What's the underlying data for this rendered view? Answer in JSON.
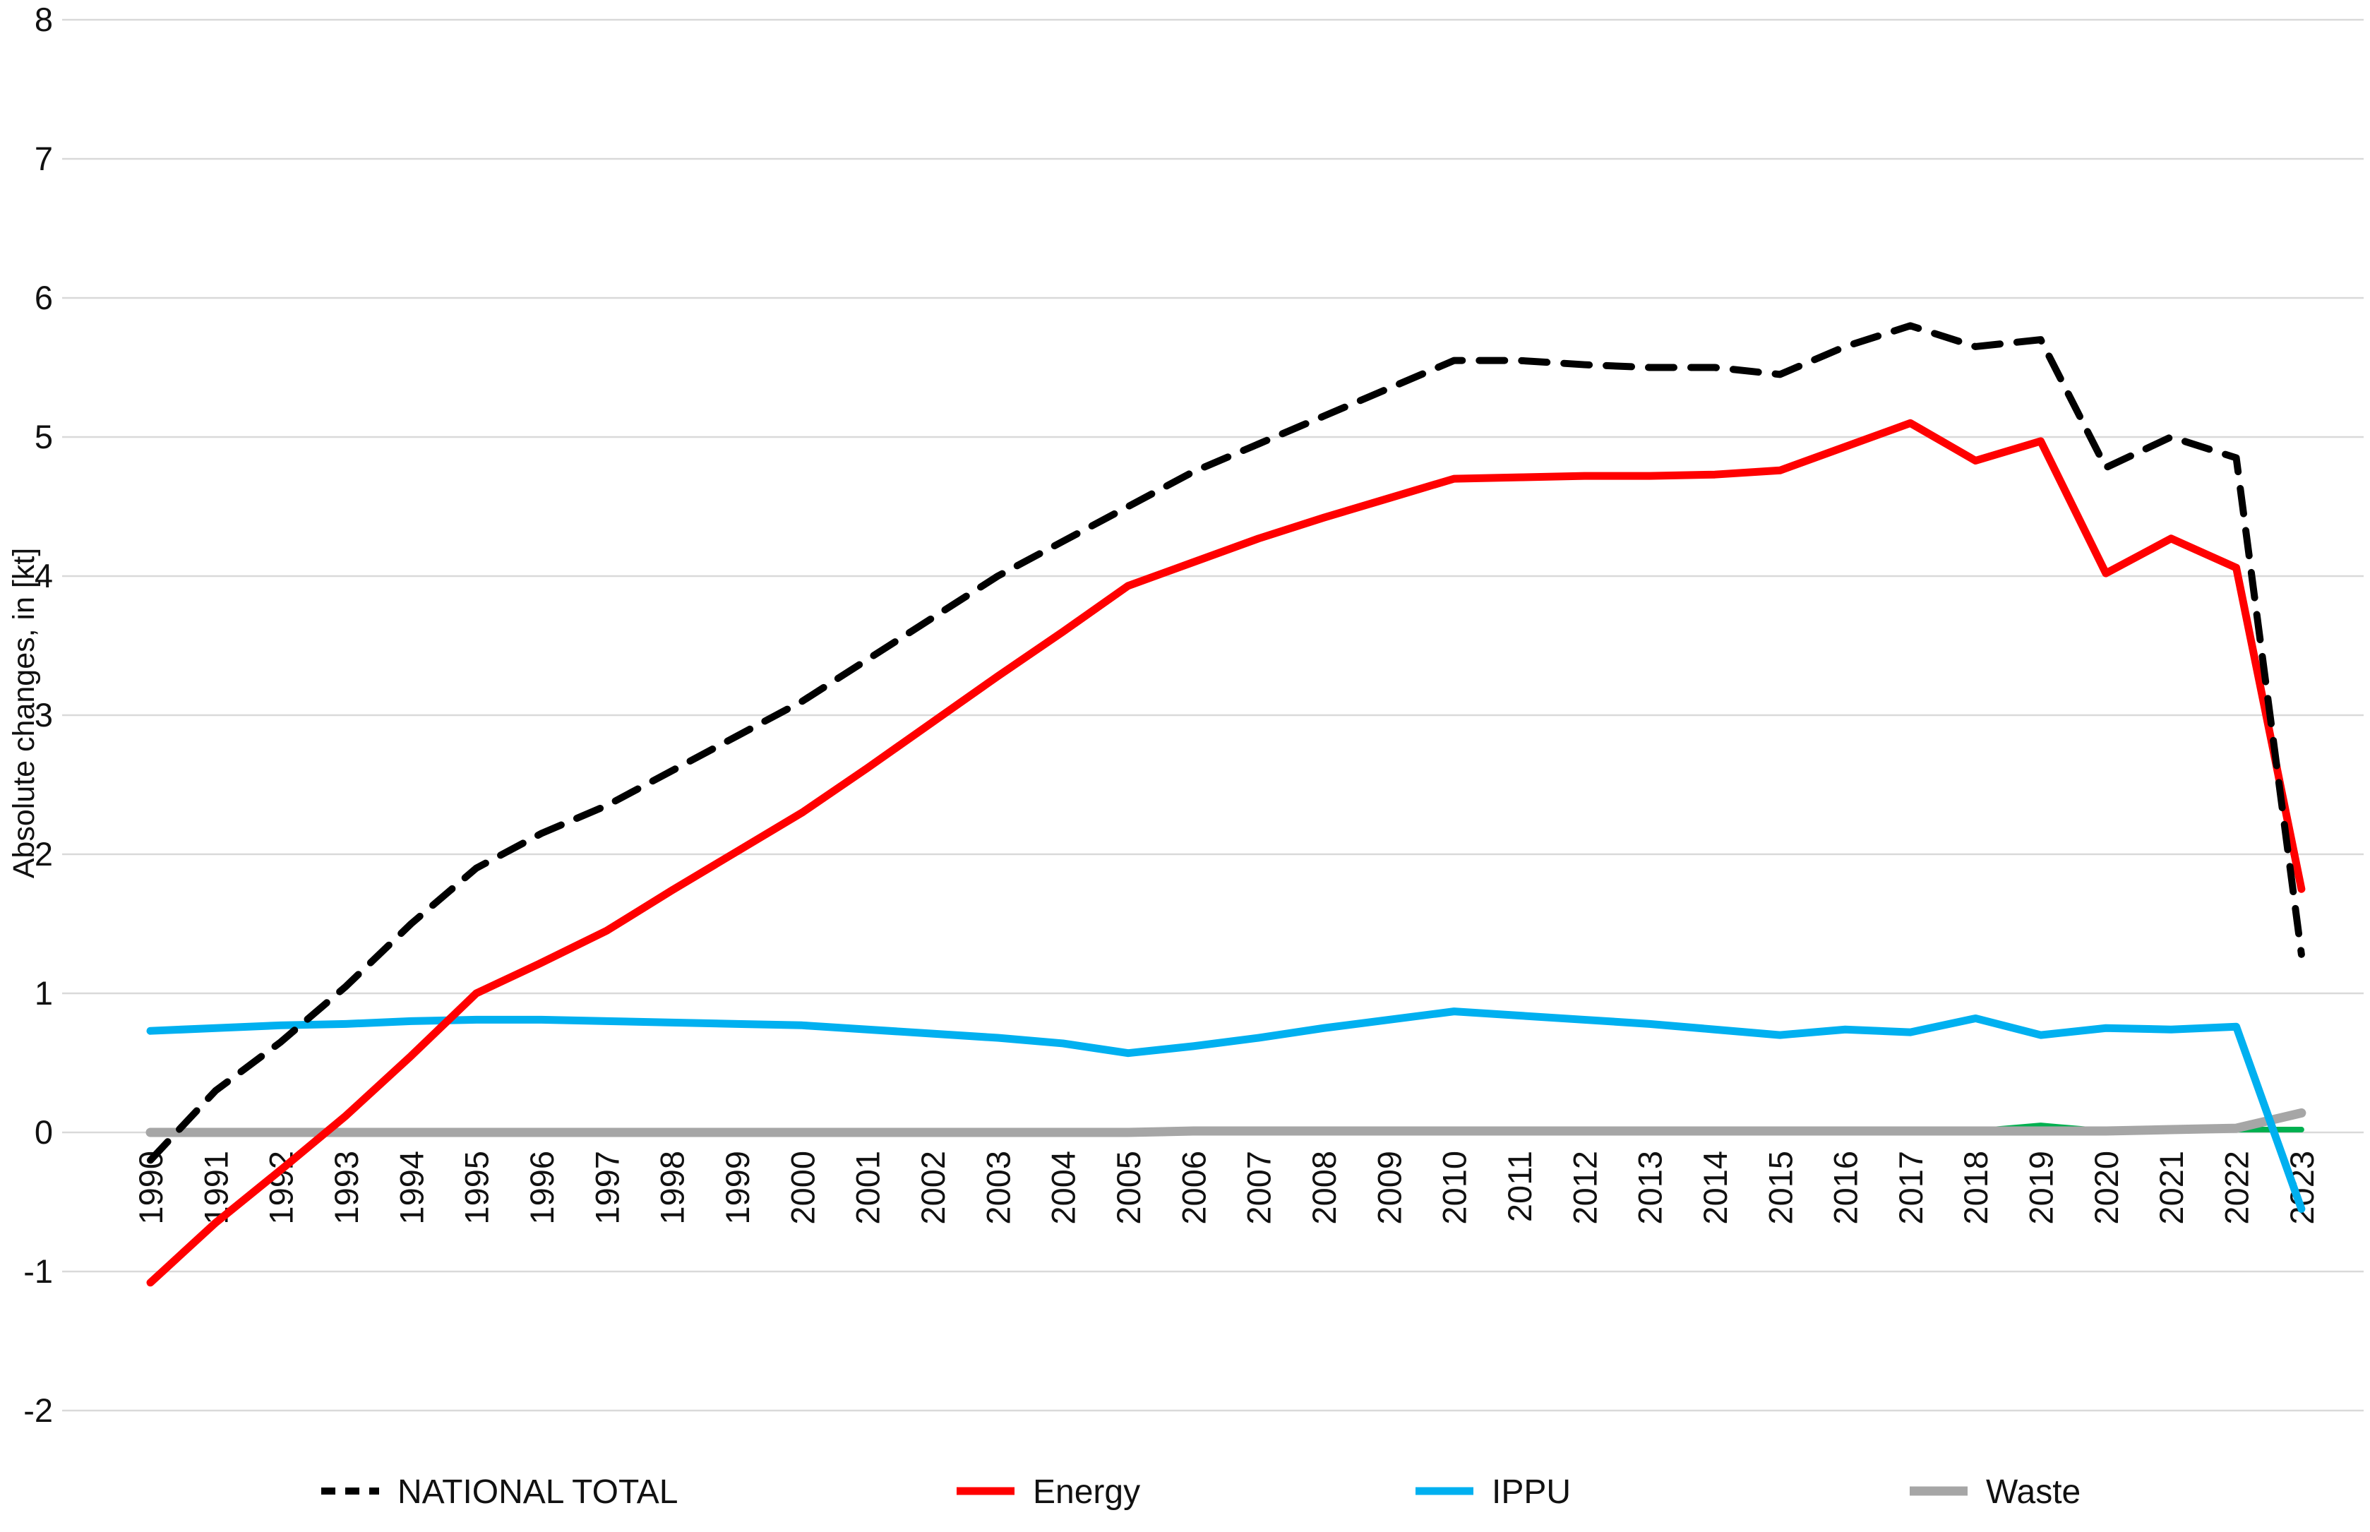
{
  "chart_data": {
    "type": "line",
    "title": "",
    "xlabel": "",
    "ylabel": "Absolute changes, in [kt]",
    "x": [
      1990,
      1991,
      1992,
      1993,
      1994,
      1995,
      1996,
      1997,
      1998,
      1999,
      2000,
      2001,
      2002,
      2003,
      2004,
      2005,
      2006,
      2007,
      2008,
      2009,
      2010,
      2011,
      2012,
      2013,
      2014,
      2015,
      2016,
      2017,
      2018,
      2019,
      2020,
      2021,
      2022,
      2023
    ],
    "y_ticks": [
      8,
      7,
      6,
      5,
      4,
      3,
      2,
      1,
      0,
      -1,
      -2
    ],
    "ylim": [
      -2,
      8
    ],
    "grid": true,
    "grid_color": "#d9d9d9",
    "legend_position": "bottom",
    "series": [
      {
        "name": "NATIONAL TOTAL",
        "color": "#000000",
        "style": "dashed",
        "in_legend": true,
        "values": [
          -0.2,
          0.3,
          0.65,
          1.05,
          1.5,
          1.9,
          2.15,
          2.35,
          2.6,
          2.85,
          3.1,
          3.4,
          3.7,
          4.0,
          4.25,
          4.5,
          4.75,
          4.95,
          5.15,
          5.35,
          5.55,
          5.55,
          5.52,
          5.5,
          5.5,
          5.45,
          5.65,
          5.8,
          5.65,
          5.7,
          4.78,
          5.0,
          4.85,
          1.28
        ]
      },
      {
        "name": "Energy",
        "color": "#ff0000",
        "style": "solid",
        "in_legend": true,
        "values": [
          -1.08,
          -0.65,
          -0.27,
          0.12,
          0.55,
          1.0,
          1.22,
          1.45,
          1.74,
          2.02,
          2.3,
          2.62,
          2.95,
          3.28,
          3.6,
          3.93,
          4.1,
          4.27,
          4.42,
          4.56,
          4.7,
          4.71,
          4.72,
          4.72,
          4.73,
          4.76,
          4.93,
          5.1,
          4.83,
          4.97,
          4.02,
          4.27,
          4.06,
          1.75
        ]
      },
      {
        "name": "IPPU",
        "color": "#00b0f0",
        "style": "solid",
        "in_legend": true,
        "values": [
          0.73,
          0.75,
          0.77,
          0.78,
          0.8,
          0.81,
          0.81,
          0.8,
          0.79,
          0.78,
          0.77,
          0.74,
          0.71,
          0.68,
          0.64,
          0.57,
          0.62,
          0.68,
          0.75,
          0.81,
          0.87,
          0.84,
          0.81,
          0.78,
          0.74,
          0.7,
          0.74,
          0.72,
          0.82,
          0.7,
          0.75,
          0.74,
          0.76,
          -0.55
        ]
      },
      {
        "name": "Waste",
        "color": "#a6a6a6",
        "style": "solid",
        "in_legend": true,
        "values": [
          0.0,
          0.0,
          0.0,
          0.0,
          0.0,
          0.0,
          0.0,
          0.0,
          0.0,
          0.0,
          0.0,
          0.0,
          0.0,
          0.0,
          0.0,
          0.0,
          0.01,
          0.01,
          0.01,
          0.01,
          0.01,
          0.01,
          0.01,
          0.01,
          0.01,
          0.01,
          0.01,
          0.01,
          0.01,
          0.01,
          0.01,
          0.02,
          0.03,
          0.14
        ]
      },
      {
        "name": "unlabeled green line",
        "color": "#00b050",
        "style": "solid",
        "in_legend": false,
        "values": [
          0.0,
          0.0,
          0.0,
          0.0,
          0.0,
          0.0,
          0.0,
          0.0,
          0.0,
          0.0,
          0.0,
          0.0,
          0.0,
          0.0,
          0.0,
          0.01,
          0.02,
          0.02,
          0.02,
          0.02,
          0.02,
          0.02,
          0.02,
          0.02,
          0.02,
          0.02,
          0.01,
          0.01,
          0.01,
          0.05,
          0.01,
          0.01,
          0.02,
          0.02
        ]
      }
    ]
  }
}
